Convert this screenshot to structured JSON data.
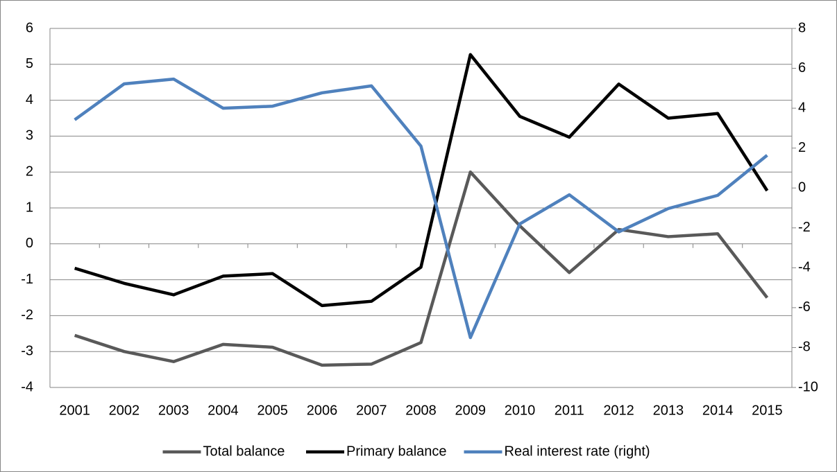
{
  "chart_data": {
    "type": "line",
    "categories": [
      "2001",
      "2002",
      "2003",
      "2004",
      "2005",
      "2006",
      "2007",
      "2008",
      "2009",
      "2010",
      "2011",
      "2012",
      "2013",
      "2014",
      "2015"
    ],
    "series": [
      {
        "name": "Total balance",
        "color": "#595959",
        "values": [
          -2.55,
          -3.0,
          -3.28,
          -2.8,
          -2.88,
          -3.38,
          -3.35,
          -2.75,
          2.0,
          0.5,
          -0.8,
          0.4,
          0.2,
          0.28,
          -1.5
        ]
      },
      {
        "name": "Primary balance",
        "color": "#000000",
        "values": [
          -0.68,
          -1.1,
          -1.42,
          -0.9,
          -0.83,
          -1.72,
          -1.6,
          -0.65,
          5.27,
          3.55,
          2.97,
          4.45,
          3.5,
          3.63,
          1.48
        ]
      },
      {
        "name": "Real interest rate (right)",
        "color": "#4f81bd",
        "axis": "y2",
        "values": [
          3.42,
          5.22,
          5.46,
          4.0,
          4.1,
          4.77,
          5.12,
          2.1,
          -7.5,
          -1.8,
          -0.34,
          -2.2,
          -1.03,
          -0.37,
          1.64
        ]
      }
    ],
    "ylim": [
      -4,
      6
    ],
    "yticks": [
      -4,
      -3,
      -2,
      -1,
      0,
      1,
      2,
      3,
      4,
      5,
      6
    ],
    "y2lim": [
      -10,
      8
    ],
    "y2ticks": [
      -10,
      -8,
      -6,
      -4,
      -2,
      0,
      2,
      4,
      6,
      8
    ],
    "grid": true,
    "legend": "bottom"
  }
}
